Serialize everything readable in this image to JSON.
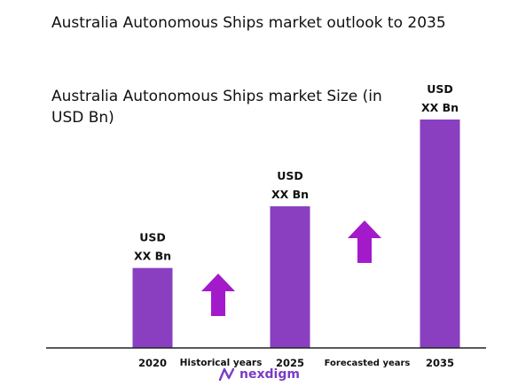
{
  "title": "Australia Autonomous Ships market outlook to 2035",
  "colors": {
    "bar": "#8a3fc0",
    "arrow": "#a31acb",
    "axis": "#222222"
  },
  "chart_data": {
    "type": "bar",
    "title": "Australia Autonomous Ships market Size (in USD Bn)",
    "categories": [
      "2020",
      "2025",
      "2035"
    ],
    "values": [
      0.35,
      0.62,
      1.0
    ],
    "value_note": "relative heights; actual values not shown",
    "data_labels": [
      [
        "USD",
        "XX Bn"
      ],
      [
        "USD",
        "XX Bn"
      ],
      [
        "USD",
        "XX Bn"
      ]
    ],
    "ylim": [
      0,
      1.0
    ],
    "grid": false,
    "period_labels": [
      "Historical years",
      "Forecasted years"
    ]
  },
  "brand": {
    "name": "nexdigm"
  }
}
